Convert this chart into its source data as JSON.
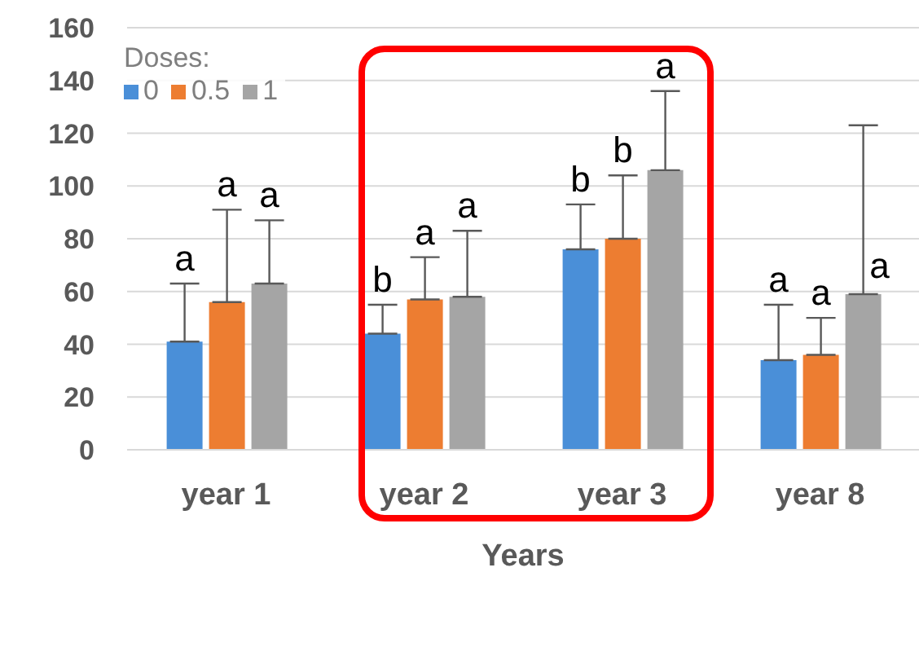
{
  "chart_data": {
    "type": "bar",
    "xlabel": "Years",
    "legend_title": "Doses:",
    "categories": [
      "year 1",
      "year 2",
      "year 3",
      "year 8"
    ],
    "series": [
      {
        "name": "0",
        "color": "#4a8fd8",
        "values": [
          41,
          44,
          76,
          34
        ],
        "errors": [
          [
            41,
            63
          ],
          [
            44,
            55
          ],
          [
            76,
            93
          ],
          [
            34,
            55
          ]
        ],
        "value_labels": [
          "a",
          "b",
          "b",
          "a"
        ]
      },
      {
        "name": "0.5",
        "color": "#ed7d31",
        "values": [
          56,
          57,
          80,
          36
        ],
        "errors": [
          [
            56,
            91
          ],
          [
            57,
            73
          ],
          [
            80,
            104
          ],
          [
            36,
            50
          ]
        ],
        "value_labels": [
          "a",
          "a",
          "b",
          "a"
        ]
      },
      {
        "name": "1",
        "color": "#a5a5a5",
        "values": [
          63,
          58,
          106,
          59
        ],
        "errors": [
          [
            63,
            87
          ],
          [
            58,
            83
          ],
          [
            106,
            136
          ],
          [
            59,
            123
          ]
        ],
        "value_labels": [
          "a",
          "a",
          "a",
          "a"
        ]
      }
    ],
    "ylim": [
      0,
      160
    ],
    "yticks": [
      0,
      20,
      40,
      60,
      80,
      100,
      120,
      140,
      160
    ],
    "grid": "y",
    "legend": "top left"
  }
}
